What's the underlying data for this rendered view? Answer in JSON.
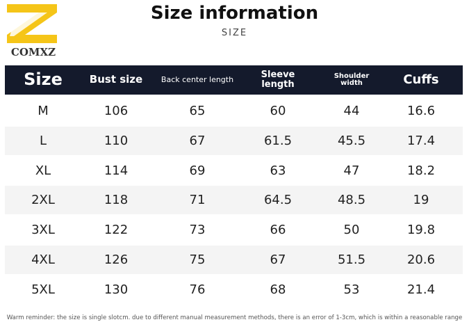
{
  "logo": {
    "text": "COMXZ"
  },
  "header": {
    "title": "Size information",
    "subtitle": "SIZE"
  },
  "table": {
    "columns": [
      "Size",
      "Bust size",
      "Back center length",
      "Sleeve length",
      "Shoulder width",
      "Cuffs"
    ],
    "rows": [
      [
        "M",
        106,
        65,
        60,
        44,
        16.6
      ],
      [
        "L",
        110,
        67,
        61.5,
        45.5,
        17.4
      ],
      [
        "XL",
        114,
        69,
        63,
        47,
        18.2
      ],
      [
        "2XL",
        118,
        71,
        64.5,
        48.5,
        19
      ],
      [
        "3XL",
        122,
        73,
        66,
        50,
        19.8
      ],
      [
        "4XL",
        126,
        75,
        67,
        51.5,
        20.6
      ],
      [
        "5XL",
        130,
        76,
        68,
        53,
        21.4
      ]
    ]
  },
  "footer": {
    "note": "Warm reminder: the size is single slotcm. due to different manual measurement methods, there is an error of 1-3cm, which is within a reasonable range"
  }
}
